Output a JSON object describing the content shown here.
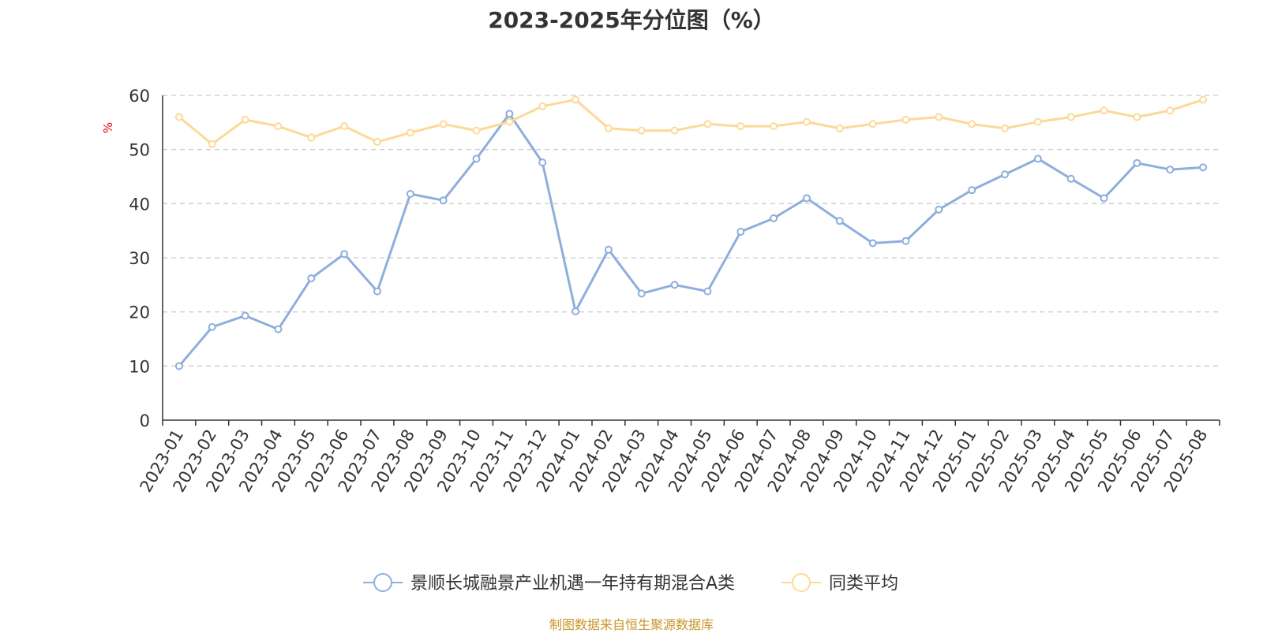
{
  "colors": {
    "series_1": "#8eaedb",
    "series_2": "#fdd998",
    "grid": "#cccccc",
    "axis": "#333333",
    "unit_label": "#e60000",
    "source": "#c8962b"
  },
  "source_note": "制图数据来自恒生聚源数据库",
  "chart_data": {
    "type": "line",
    "title": "2023-2025年分位图（%）",
    "ylabel": "%",
    "xlabel": "",
    "ylim": [
      0,
      60
    ],
    "yticks": [
      "0",
      "10",
      "20",
      "30",
      "40",
      "50",
      "60"
    ],
    "grid": "horizontal dashed",
    "legend": "bottom-center",
    "categories": [
      "2023-01",
      "2023-02",
      "2023-03",
      "2023-04",
      "2023-05",
      "2023-06",
      "2023-07",
      "2023-08",
      "2023-09",
      "2023-10",
      "2023-11",
      "2023-12",
      "2024-01",
      "2024-02",
      "2024-03",
      "2024-04",
      "2024-05",
      "2024-06",
      "2024-07",
      "2024-08",
      "2024-09",
      "2024-10",
      "2024-11",
      "2024-12",
      "2025-01",
      "2025-02",
      "2025-03",
      "2025-04",
      "2025-05",
      "2025-06",
      "2025-07",
      "2025-08"
    ],
    "series": [
      {
        "name": "景顺长城融景产业机遇一年持有期混合A类",
        "color": "#8eaedb",
        "values": [
          10.0,
          17.2,
          19.3,
          16.8,
          26.2,
          30.7,
          23.8,
          41.8,
          40.6,
          48.3,
          56.6,
          47.6,
          20.1,
          31.5,
          23.4,
          25.0,
          23.8,
          34.8,
          37.3,
          41.0,
          36.8,
          32.7,
          33.1,
          38.9,
          42.5,
          45.4,
          48.3,
          44.6,
          41.0,
          47.5,
          46.3,
          46.7
        ]
      },
      {
        "name": "同类平均",
        "color": "#fdd998",
        "values": [
          56.0,
          51.0,
          55.5,
          54.3,
          52.2,
          54.3,
          51.4,
          53.1,
          54.7,
          53.5,
          55.1,
          58.0,
          59.2,
          53.9,
          53.5,
          53.5,
          54.7,
          54.3,
          54.3,
          55.1,
          53.9,
          54.7,
          55.5,
          56.0,
          54.7,
          53.9,
          55.1,
          56.0,
          57.2,
          56.0,
          57.2,
          59.2
        ]
      }
    ]
  }
}
